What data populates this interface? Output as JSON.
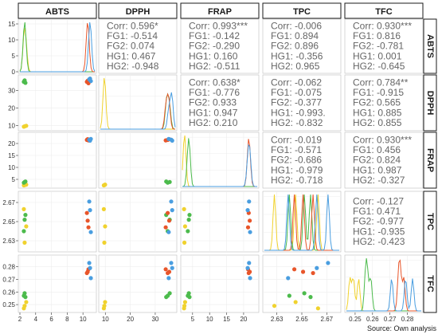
{
  "variables": [
    "ABTS",
    "DPPH",
    "FRAP",
    "TPC",
    "TFC"
  ],
  "source_note": "Source: Own analysis",
  "colors": {
    "FG1": "#f0d22e",
    "FG2": "#4cbb4c",
    "HG1": "#e8552a",
    "HG2": "#4a9ee0",
    "corr_text": "#666666"
  },
  "chart_data": {
    "type": "scatter",
    "layout": "pairs-matrix",
    "groups": [
      "FG1",
      "FG2",
      "HG1",
      "HG2"
    ],
    "axes": {
      "ABTS": {
        "range": [
          2,
          11.5
        ],
        "ticks": [
          "2",
          "4",
          "6",
          "8",
          "10"
        ]
      },
      "DPPH": {
        "range": [
          8,
          38
        ],
        "ticks": [
          "10",
          "20",
          "30"
        ]
      },
      "FRAP": {
        "range": [
          2,
          24
        ],
        "ticks": [
          "5",
          "10",
          "15",
          "20"
        ]
      },
      "TPC": {
        "range": [
          2.62,
          2.68
        ],
        "ticks": [
          "2.63",
          "2.65",
          "2.67"
        ]
      },
      "TFC": {
        "range": [
          0.245,
          0.288
        ],
        "ticks": [
          "0.25",
          "0.26",
          "0.27",
          "0.28"
        ]
      }
    },
    "density_yaxis": {
      "range": [
        0,
        16
      ],
      "ticks": [
        "0",
        "5",
        "10",
        "15"
      ]
    },
    "correlations": [
      {
        "row": "ABTS",
        "col": "DPPH",
        "lines": [
          "Corr: 0.596*",
          "FG1: -0.514",
          "FG2: 0.074",
          "HG1: 0.467",
          "HG2: -0.948"
        ]
      },
      {
        "row": "ABTS",
        "col": "FRAP",
        "lines": [
          "Corr: 0.993***",
          "FG1: -0.142",
          "FG2: -0.290",
          "HG1: 0.160",
          "HG2: -0.511"
        ]
      },
      {
        "row": "ABTS",
        "col": "TPC",
        "lines": [
          "Corr: -0.006",
          "FG1: 0.894",
          "FG2: 0.896",
          "HG1: -0.356",
          "HG2: 0.965"
        ]
      },
      {
        "row": "ABTS",
        "col": "TFC",
        "lines": [
          "Corr: 0.930***",
          "FG1: 0.816",
          "FG2: -0.781",
          "HG1: 0.001",
          "HG2: -0.645"
        ]
      },
      {
        "row": "DPPH",
        "col": "FRAP",
        "lines": [
          "Corr: 0.638*",
          "FG1: -0.776",
          "FG2: 0.933",
          "HG1: 0.947",
          "HG2: 0.210"
        ]
      },
      {
        "row": "DPPH",
        "col": "TPC",
        "lines": [
          "Corr: -0.062",
          "FG1: -0.075",
          "FG2: -0.377",
          "HG1: -0.993.",
          "HG2: -0.832"
        ]
      },
      {
        "row": "DPPH",
        "col": "TFC",
        "lines": [
          "Corr: 0.784**",
          "FG1: -0.915",
          "FG2: 0.565",
          "HG1: 0.885",
          "HG2: 0.855"
        ]
      },
      {
        "row": "FRAP",
        "col": "TPC",
        "lines": [
          "Corr: -0.019",
          "FG1: -0.571",
          "FG2: -0.686",
          "HG1: -0.979",
          "HG2: -0.718"
        ]
      },
      {
        "row": "FRAP",
        "col": "TFC",
        "lines": [
          "Corr: 0.930***",
          "FG1: 0.456",
          "FG2: 0.824",
          "HG1: 0.987",
          "HG2: -0.327"
        ]
      },
      {
        "row": "TPC",
        "col": "TFC",
        "lines": [
          "Corr: -0.127",
          "FG1: 0.471",
          "FG2: -0.977",
          "HG1: -0.935",
          "HG2: -0.423"
        ]
      }
    ],
    "observations": {
      "FG1": [
        {
          "ABTS": 2.6,
          "DPPH": 9.6,
          "FRAP": 2.6,
          "TPC": 2.628,
          "TFC": 0.249
        },
        {
          "ABTS": 2.8,
          "DPPH": 9.9,
          "FRAP": 2.8,
          "TPC": 2.645,
          "TFC": 0.252
        },
        {
          "ABTS": 2.5,
          "DPPH": 9.4,
          "FRAP": 2.5,
          "TPC": 2.663,
          "TFC": 0.247
        }
      ],
      "FG2": [
        {
          "ABTS": 2.5,
          "DPPH": 35.0,
          "FRAP": 3.6,
          "TPC": 2.64,
          "TFC": 0.257
        },
        {
          "ABTS": 2.6,
          "DPPH": 35.8,
          "FRAP": 3.9,
          "TPC": 2.652,
          "TFC": 0.259
        },
        {
          "ABTS": 2.7,
          "DPPH": 34.4,
          "FRAP": 4.1,
          "TPC": 2.657,
          "TFC": 0.256
        }
      ],
      "HG1": [
        {
          "ABTS": 10.5,
          "DPPH": 35.0,
          "FRAP": 21.5,
          "TPC": 2.659,
          "TFC": 0.275
        },
        {
          "ABTS": 10.6,
          "DPPH": 35.6,
          "FRAP": 21.8,
          "TPC": 2.651,
          "TFC": 0.276
        },
        {
          "ABTS": 10.7,
          "DPPH": 34.2,
          "FRAP": 21.3,
          "TPC": 2.644,
          "TFC": 0.278
        }
      ],
      "HG2": [
        {
          "ABTS": 10.8,
          "DPPH": 36.4,
          "FRAP": 21.6,
          "TPC": 2.671,
          "TFC": 0.283
        },
        {
          "ABTS": 11.0,
          "DPPH": 35.4,
          "FRAP": 21.9,
          "TPC": 2.639,
          "TFC": 0.271
        },
        {
          "ABTS": 10.9,
          "DPPH": 36.8,
          "FRAP": 21.2,
          "TPC": 2.662,
          "TFC": 0.279
        }
      ]
    }
  }
}
